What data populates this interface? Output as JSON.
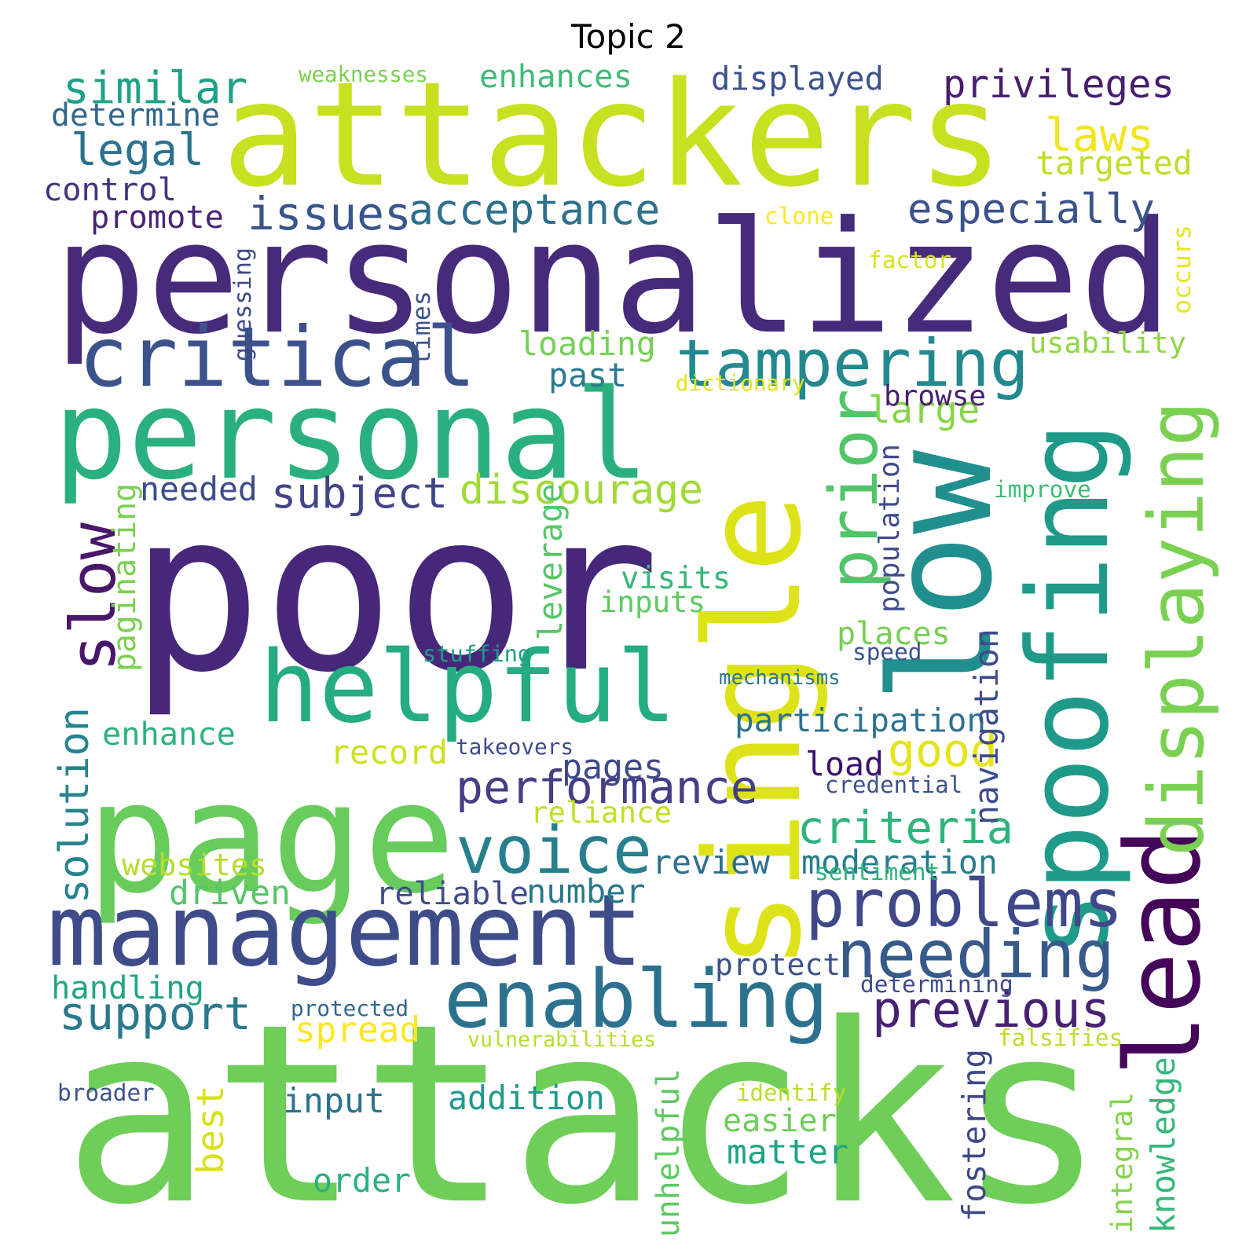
{
  "title": "Topic 2",
  "words": [
    {
      "text": "attackers",
      "color": "#c8e020"
    },
    {
      "text": "personalized",
      "color": "#472a7a"
    },
    {
      "text": "poor",
      "color": "#46277a"
    },
    {
      "text": "attacks",
      "color": "#6ece58"
    },
    {
      "text": "page",
      "color": "#67cc5c"
    },
    {
      "text": "personal",
      "color": "#2ab07f"
    },
    {
      "text": "single",
      "color": "#dde318"
    },
    {
      "text": "low",
      "color": "#218f8d"
    },
    {
      "text": "management",
      "color": "#3e4c8a"
    },
    {
      "text": "spoofing",
      "color": "#1f9a8a"
    },
    {
      "text": "critical",
      "color": "#3b528b"
    },
    {
      "text": "helpful",
      "color": "#25ac82"
    },
    {
      "text": "lead",
      "color": "#450559"
    },
    {
      "text": "enabling",
      "color": "#2c728e"
    },
    {
      "text": "voice",
      "color": "#277f8e"
    },
    {
      "text": "tampering",
      "color": "#23898e"
    },
    {
      "text": "problems",
      "color": "#3f4889"
    },
    {
      "text": "needing",
      "color": "#375a8c"
    },
    {
      "text": "displaying",
      "color": "#7ad151"
    },
    {
      "text": "prior",
      "color": "#52c569"
    },
    {
      "text": "slow",
      "color": "#481769"
    },
    {
      "text": "performance",
      "color": "#433e85"
    },
    {
      "text": "discourage",
      "color": "#a2da37"
    },
    {
      "text": "criteria",
      "color": "#2fb47c"
    },
    {
      "text": "previous",
      "color": "#482173"
    },
    {
      "text": "support",
      "color": "#2a788e"
    },
    {
      "text": "especially",
      "color": "#3b528b"
    },
    {
      "text": "acceptance",
      "color": "#2d708e"
    },
    {
      "text": "issues",
      "color": "#3a548c"
    },
    {
      "text": "similar",
      "color": "#1fa088"
    },
    {
      "text": "privileges",
      "color": "#481d6f"
    },
    {
      "text": "legal",
      "color": "#2c728e"
    },
    {
      "text": "subject",
      "color": "#414487"
    },
    {
      "text": "good",
      "color": "#e5e419"
    },
    {
      "text": "solution",
      "color": "#25848e"
    },
    {
      "text": "laws",
      "color": "#f1e51d"
    },
    {
      "text": "enhances",
      "color": "#3dbc74"
    },
    {
      "text": "displayed",
      "color": "#3b528b"
    },
    {
      "text": "targeted",
      "color": "#bddf26"
    },
    {
      "text": "determine",
      "color": "#31678e"
    },
    {
      "text": "control",
      "color": "#46337e"
    },
    {
      "text": "promote",
      "color": "#482475"
    },
    {
      "text": "moderation",
      "color": "#287c8e"
    },
    {
      "text": "participation",
      "color": "#2c728e"
    },
    {
      "text": "pages",
      "color": "#3e4989"
    },
    {
      "text": "record",
      "color": "#cde11d"
    },
    {
      "text": "large",
      "color": "#86d549"
    },
    {
      "text": "loading",
      "color": "#75d054"
    },
    {
      "text": "past",
      "color": "#2a788e"
    },
    {
      "text": "browse",
      "color": "#481f70"
    },
    {
      "text": "usability",
      "color": "#8fd744"
    },
    {
      "text": "needed",
      "color": "#3e4c8a"
    },
    {
      "text": "paginating",
      "color": "#7ad151"
    },
    {
      "text": "leverage",
      "color": "#56c667"
    },
    {
      "text": "population",
      "color": "#3e4c8a"
    },
    {
      "text": "visits",
      "color": "#35b779"
    },
    {
      "text": "inputs",
      "color": "#5ec962"
    },
    {
      "text": "places",
      "color": "#75d054"
    },
    {
      "text": "navigation",
      "color": "#3e4c8a"
    },
    {
      "text": "enhance",
      "color": "#2db27d"
    },
    {
      "text": "load",
      "color": "#3b0f70"
    },
    {
      "text": "websites",
      "color": "#b5de2b"
    },
    {
      "text": "driven",
      "color": "#54c568"
    },
    {
      "text": "review",
      "color": "#2d708e"
    },
    {
      "text": "reliance",
      "color": "#c2df23"
    },
    {
      "text": "reliable",
      "color": "#3e4c8a"
    },
    {
      "text": "number",
      "color": "#2a788e"
    },
    {
      "text": "handling",
      "color": "#20a486"
    },
    {
      "text": "protect",
      "color": "#3b528b"
    },
    {
      "text": "spread",
      "color": "#fde725"
    },
    {
      "text": "best",
      "color": "#d8e219"
    },
    {
      "text": "unhelpful",
      "color": "#5ec962"
    },
    {
      "text": "input",
      "color": "#2c728e"
    },
    {
      "text": "addition",
      "color": "#1f988b"
    },
    {
      "text": "easier",
      "color": "#6ece58"
    },
    {
      "text": "matter",
      "color": "#20a386"
    },
    {
      "text": "order",
      "color": "#2ab07f"
    },
    {
      "text": "fostering",
      "color": "#3e4989"
    },
    {
      "text": "integral",
      "color": "#84d44b"
    },
    {
      "text": "knowledge",
      "color": "#35b779"
    },
    {
      "text": "weaknesses",
      "color": "#7ad151"
    },
    {
      "text": "clone",
      "color": "#fde725"
    },
    {
      "text": "factor",
      "color": "#d8e219"
    },
    {
      "text": "occurs",
      "color": "#e5e419"
    },
    {
      "text": "guessing",
      "color": "#3e4989"
    },
    {
      "text": "times",
      "color": "#3b528b"
    },
    {
      "text": "dictionary",
      "color": "#e2e418"
    },
    {
      "text": "improve",
      "color": "#3dbc74"
    },
    {
      "text": "stuffing",
      "color": "#1fa088"
    },
    {
      "text": "speed",
      "color": "#3b528b"
    },
    {
      "text": "mechanisms",
      "color": "#2a788e"
    },
    {
      "text": "takeovers",
      "color": "#3e4c8a"
    },
    {
      "text": "credential",
      "color": "#3b528b"
    },
    {
      "text": "sentiment",
      "color": "#2db27d"
    },
    {
      "text": "determining",
      "color": "#3e4989"
    },
    {
      "text": "protected",
      "color": "#31678e"
    },
    {
      "text": "falsifies",
      "color": "#bddf26"
    },
    {
      "text": "vulnerabilities",
      "color": "#b5de2b"
    },
    {
      "text": "identify",
      "color": "#b8de29"
    },
    {
      "text": "broader",
      "color": "#3b528b"
    }
  ]
}
